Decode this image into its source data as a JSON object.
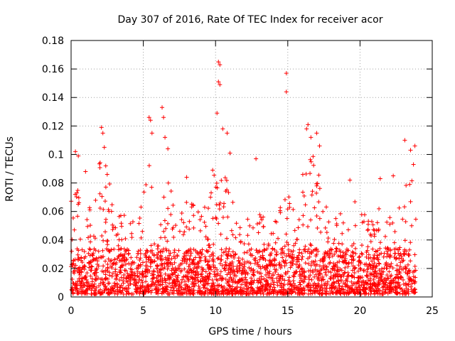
{
  "chart_data": {
    "type": "scatter",
    "title": "Day 307 of 2016, Rate Of TEC Index for receiver acor",
    "xlabel": "GPS time / hours",
    "ylabel": "ROTI / TECUs",
    "xlim": [
      0,
      25
    ],
    "ylim": [
      0,
      0.18
    ],
    "x_ticks": [
      0,
      5,
      10,
      15,
      20,
      25
    ],
    "x_tick_labels": [
      "0",
      "5",
      "10",
      "15",
      "20",
      "25"
    ],
    "y_ticks": [
      0,
      0.02,
      0.04,
      0.06,
      0.08,
      0.1,
      0.12,
      0.14,
      0.16,
      0.18
    ],
    "y_tick_labels": [
      "0",
      "0.02",
      "0.04",
      "0.06",
      "0.08",
      "0.1",
      "0.12",
      "0.14",
      "0.16",
      "0.18"
    ],
    "grid": true,
    "marker": "+",
    "color": "#ff0000",
    "notable_points": [
      {
        "x": 0.3,
        "y": 0.102
      },
      {
        "x": 0.5,
        "y": 0.099
      },
      {
        "x": 1.0,
        "y": 0.088
      },
      {
        "x": 2.1,
        "y": 0.119
      },
      {
        "x": 2.2,
        "y": 0.115
      },
      {
        "x": 2.3,
        "y": 0.105
      },
      {
        "x": 2.4,
        "y": 0.092
      },
      {
        "x": 2.5,
        "y": 0.086
      },
      {
        "x": 5.4,
        "y": 0.126
      },
      {
        "x": 5.5,
        "y": 0.124
      },
      {
        "x": 5.6,
        "y": 0.115
      },
      {
        "x": 6.3,
        "y": 0.133
      },
      {
        "x": 6.4,
        "y": 0.126
      },
      {
        "x": 6.5,
        "y": 0.112
      },
      {
        "x": 6.7,
        "y": 0.104
      },
      {
        "x": 10.2,
        "y": 0.165
      },
      {
        "x": 10.3,
        "y": 0.163
      },
      {
        "x": 10.2,
        "y": 0.151
      },
      {
        "x": 10.3,
        "y": 0.149
      },
      {
        "x": 10.1,
        "y": 0.129
      },
      {
        "x": 10.5,
        "y": 0.118
      },
      {
        "x": 10.8,
        "y": 0.115
      },
      {
        "x": 11.0,
        "y": 0.101
      },
      {
        "x": 14.9,
        "y": 0.157
      },
      {
        "x": 14.9,
        "y": 0.144
      },
      {
        "x": 16.4,
        "y": 0.121
      },
      {
        "x": 16.3,
        "y": 0.118
      },
      {
        "x": 16.6,
        "y": 0.112
      },
      {
        "x": 17.0,
        "y": 0.115
      },
      {
        "x": 17.2,
        "y": 0.106
      },
      {
        "x": 22.3,
        "y": 0.085
      },
      {
        "x": 23.1,
        "y": 0.11
      },
      {
        "x": 23.5,
        "y": 0.103
      },
      {
        "x": 23.8,
        "y": 0.106
      },
      {
        "x": 23.7,
        "y": 0.093
      },
      {
        "x": 12.8,
        "y": 0.097
      },
      {
        "x": 9.8,
        "y": 0.089
      },
      {
        "x": 8.0,
        "y": 0.084
      },
      {
        "x": 19.3,
        "y": 0.082
      },
      {
        "x": 21.4,
        "y": 0.083
      }
    ],
    "envelope": {
      "x": [
        0,
        0.5,
        1,
        1.5,
        2,
        2.5,
        3,
        3.5,
        4,
        4.5,
        5,
        5.5,
        6,
        6.5,
        7,
        7.5,
        8,
        8.5,
        9,
        9.5,
        10,
        10.5,
        11,
        11.5,
        12,
        12.5,
        13,
        13.5,
        14,
        14.5,
        15,
        15.5,
        16,
        16.5,
        17,
        17.5,
        18,
        18.5,
        19,
        19.5,
        20,
        20.5,
        21,
        21.5,
        22,
        22.5,
        23,
        23.5,
        23.9
      ],
      "y_max": [
        0.07,
        0.08,
        0.07,
        0.06,
        0.1,
        0.09,
        0.06,
        0.075,
        0.08,
        0.06,
        0.08,
        0.11,
        0.07,
        0.1,
        0.07,
        0.06,
        0.07,
        0.065,
        0.07,
        0.07,
        0.09,
        0.09,
        0.075,
        0.06,
        0.06,
        0.05,
        0.06,
        0.055,
        0.05,
        0.065,
        0.08,
        0.055,
        0.09,
        0.11,
        0.09,
        0.075,
        0.055,
        0.06,
        0.065,
        0.07,
        0.065,
        0.06,
        0.055,
        0.07,
        0.08,
        0.06,
        0.09,
        0.08,
        0.09
      ]
    },
    "y_floor": 0.002,
    "x_start": 0.0,
    "x_end": 23.9,
    "point_count": 2600
  }
}
